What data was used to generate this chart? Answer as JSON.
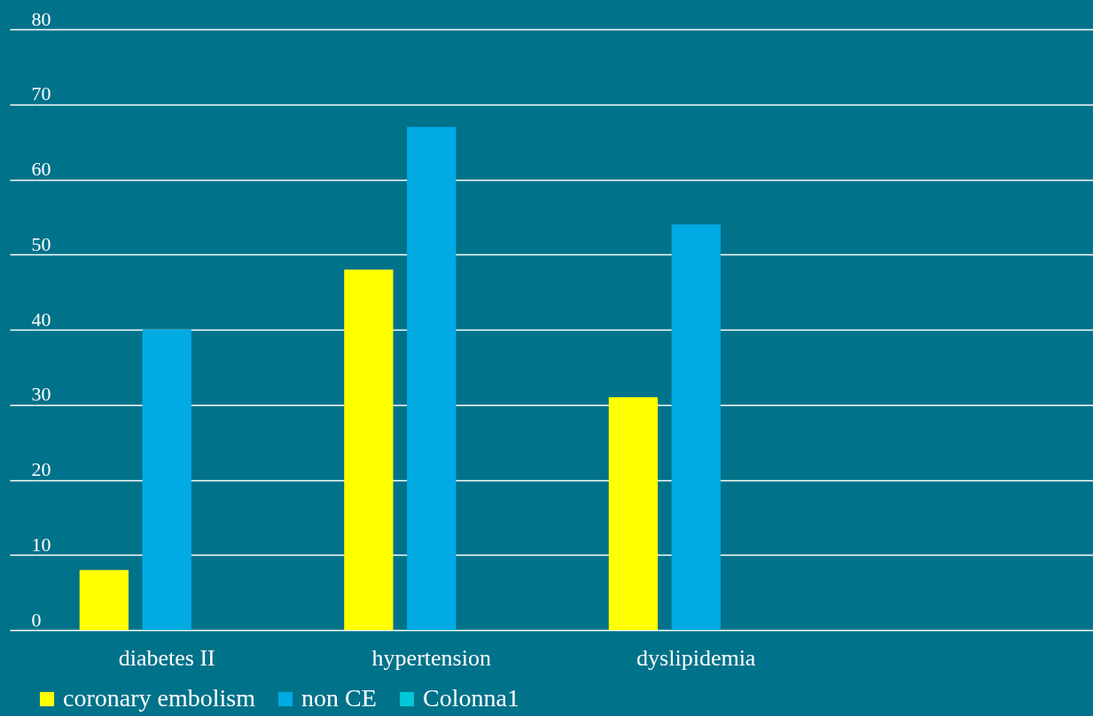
{
  "chart_data": {
    "type": "bar",
    "categories": [
      "diabetes II",
      "hypertension",
      "dyslipidemia",
      null
    ],
    "series": [
      {
        "name": "coronary embolism",
        "color": "#ffff00",
        "values": [
          8,
          48,
          31,
          null
        ]
      },
      {
        "name": "non CE",
        "color": "#00abe4",
        "values": [
          40,
          67,
          54,
          null
        ]
      },
      {
        "name": "Colonna1",
        "color": "#00c8d8",
        "values": [
          null,
          null,
          null,
          null
        ]
      }
    ],
    "ylim": [
      0,
      80
    ],
    "yticks": [
      0,
      10,
      20,
      30,
      40,
      50,
      60,
      70,
      80
    ],
    "grid": "y",
    "legend": "bottom"
  }
}
